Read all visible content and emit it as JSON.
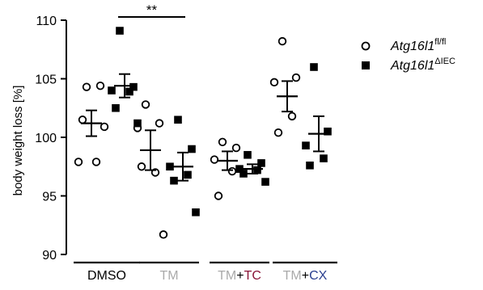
{
  "chart_data": {
    "type": "scatter",
    "ylabel": "body weight loss [%]",
    "ylim": [
      90,
      110
    ],
    "yticks": [
      90,
      95,
      100,
      105,
      110
    ],
    "grid": false,
    "legend_position": "top-right",
    "legend": [
      {
        "base": "Atg16l1",
        "superscript": "fl/fl",
        "marker": "open-circle"
      },
      {
        "base": "Atg16l1",
        "superscript": "ΔIEC",
        "marker": "filled-square"
      }
    ],
    "categories": [
      {
        "parts": [
          {
            "text": "DMSO",
            "color": "#000000"
          }
        ]
      },
      {
        "parts": [
          {
            "text": "TM",
            "color": "#aaaaaa"
          }
        ]
      },
      {
        "parts": [
          {
            "text": "TM",
            "color": "#aaaaaa"
          },
          {
            "text": "+",
            "color": "#000000"
          },
          {
            "text": "TC",
            "color": "#8a1538"
          }
        ]
      },
      {
        "parts": [
          {
            "text": "TM",
            "color": "#aaaaaa"
          },
          {
            "text": "+",
            "color": "#000000"
          },
          {
            "text": "CX",
            "color": "#2a3f8f"
          }
        ]
      }
    ],
    "series": [
      {
        "marker": "open-circle",
        "points": [
          [
            104.3,
            104.4,
            97.9,
            97.9,
            101.5,
            100.9
          ],
          [
            102.8,
            101.2,
            100.8,
            97.0,
            97.5,
            91.7
          ],
          [
            99.6,
            99.1,
            98.1,
            97.1,
            95.0
          ],
          [
            108.2,
            105.1,
            104.7,
            101.8,
            100.4
          ]
        ],
        "mean": [
          101.2,
          98.9,
          98.0,
          103.5
        ],
        "sem": [
          1.1,
          1.7,
          0.8,
          1.3
        ]
      },
      {
        "marker": "filled-square",
        "points": [
          [
            109.1,
            104.3,
            104.0,
            103.9,
            102.5,
            101.2
          ],
          [
            101.5,
            99.0,
            97.5,
            96.8,
            96.3,
            93.6
          ],
          [
            98.5,
            97.8,
            97.3,
            97.2,
            96.9,
            96.2
          ],
          [
            106.0,
            100.5,
            99.3,
            98.2,
            97.6
          ]
        ],
        "mean": [
          104.4,
          97.5,
          97.3,
          100.3
        ],
        "sem": [
          1.0,
          1.2,
          0.4,
          1.5
        ]
      }
    ],
    "annotations": [
      {
        "text": "**",
        "from_category": 0,
        "to_category": 1
      }
    ]
  }
}
